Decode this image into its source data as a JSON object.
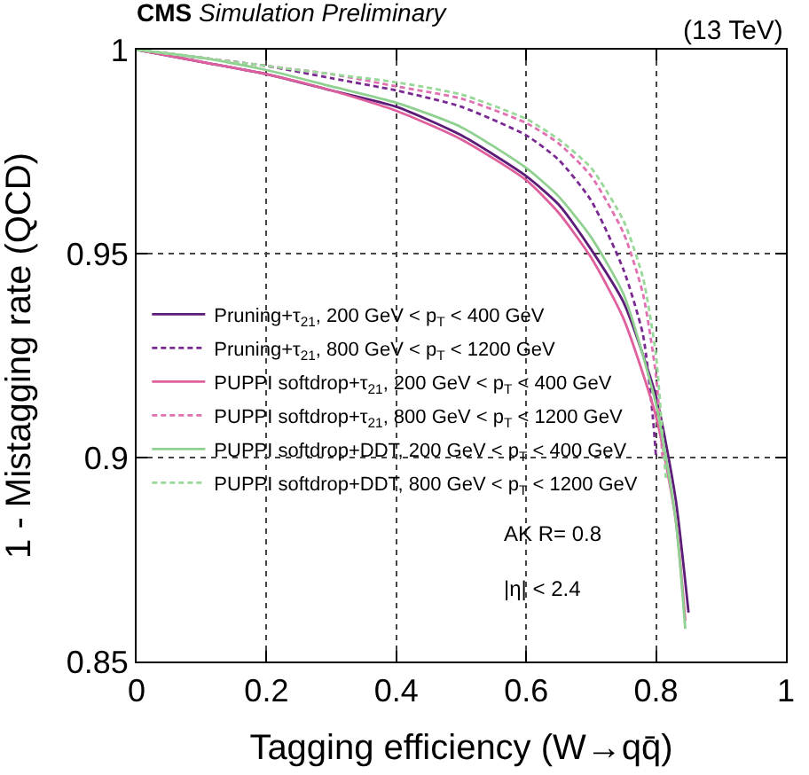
{
  "chart_data": {
    "type": "line",
    "title": "CMS Simulation Preliminary",
    "xlabel": "Tagging efficiency (W→qq̄)",
    "ylabel": "1 - Mistagging rate (QCD)",
    "annotations": [
      "(13 TeV)",
      "AK R= 0.8",
      "|η| < 2.4"
    ],
    "xlim": [
      0,
      1
    ],
    "ylim": [
      0.85,
      1
    ],
    "xticks": [
      0,
      0.2,
      0.4,
      0.6,
      0.8,
      1
    ],
    "yticks": [
      0.85,
      0.9,
      0.95,
      1
    ],
    "grid": true,
    "legend": "left",
    "marker": "none",
    "series": [
      {
        "name": "Pruning+τ$_{21}$, 200 GeV < p$_{T}$ < 400 GeV",
        "color": "#5c1d78",
        "line_style": "solid",
        "x": [
          0,
          0.1,
          0.2,
          0.3,
          0.4,
          0.5,
          0.6,
          0.65,
          0.7,
          0.75,
          0.8,
          0.83,
          0.85
        ],
        "values": [
          1,
          0.997,
          0.994,
          0.99,
          0.986,
          0.979,
          0.969,
          0.962,
          0.951,
          0.938,
          0.915,
          0.89,
          0.862
        ]
      },
      {
        "name": "Pruning+τ$_{21}$, 800 GeV < p$_{T}$ < 1200 GeV",
        "color": "#7a2a92",
        "line_style": "dashed",
        "x": [
          0,
          0.1,
          0.2,
          0.3,
          0.4,
          0.5,
          0.6,
          0.65,
          0.7,
          0.75,
          0.78,
          0.795,
          0.8
        ],
        "values": [
          1,
          0.998,
          0.996,
          0.993,
          0.99,
          0.986,
          0.979,
          0.973,
          0.963,
          0.946,
          0.93,
          0.91,
          0.9
        ]
      },
      {
        "name": "PUPPI softdrop+τ$_{21}$, 200 GeV < p$_{T}$ < 400 GeV",
        "color": "#e0609e",
        "line_style": "solid",
        "x": [
          0,
          0.1,
          0.2,
          0.3,
          0.4,
          0.5,
          0.6,
          0.65,
          0.7,
          0.75,
          0.8,
          0.83,
          0.845
        ],
        "values": [
          1,
          0.997,
          0.994,
          0.99,
          0.985,
          0.978,
          0.968,
          0.96,
          0.949,
          0.934,
          0.91,
          0.885,
          0.86
        ]
      },
      {
        "name": "PUPPI softdrop+τ$_{21}$, 800 GeV < p$_{T}$ < 1200 GeV",
        "color": "#e070b0",
        "line_style": "dashed",
        "x": [
          0,
          0.1,
          0.2,
          0.3,
          0.4,
          0.5,
          0.6,
          0.65,
          0.7,
          0.75,
          0.78,
          0.8,
          0.81
        ],
        "values": [
          1,
          0.998,
          0.996,
          0.994,
          0.991,
          0.988,
          0.982,
          0.977,
          0.969,
          0.955,
          0.94,
          0.92,
          0.9
        ]
      },
      {
        "name": "PUPPI softdrop+DDT, 200 GeV < p$_{T}$ < 400 GeV",
        "color": "#90d090",
        "line_style": "solid",
        "x": [
          0,
          0.1,
          0.2,
          0.3,
          0.4,
          0.5,
          0.6,
          0.65,
          0.7,
          0.75,
          0.8,
          0.83,
          0.845
        ],
        "values": [
          1,
          0.998,
          0.995,
          0.991,
          0.987,
          0.981,
          0.971,
          0.964,
          0.954,
          0.94,
          0.913,
          0.885,
          0.858
        ]
      },
      {
        "name": "PUPPI softdrop+DDT, 800 GeV < p$_{T}$ < 1200 GeV",
        "color": "#98d898",
        "line_style": "dashed",
        "x": [
          0,
          0.1,
          0.2,
          0.3,
          0.4,
          0.5,
          0.6,
          0.65,
          0.7,
          0.75,
          0.78,
          0.8,
          0.81,
          0.815
        ],
        "values": [
          1,
          0.998,
          0.996,
          0.994,
          0.992,
          0.989,
          0.983,
          0.978,
          0.971,
          0.958,
          0.944,
          0.925,
          0.905,
          0.895
        ]
      }
    ]
  }
}
